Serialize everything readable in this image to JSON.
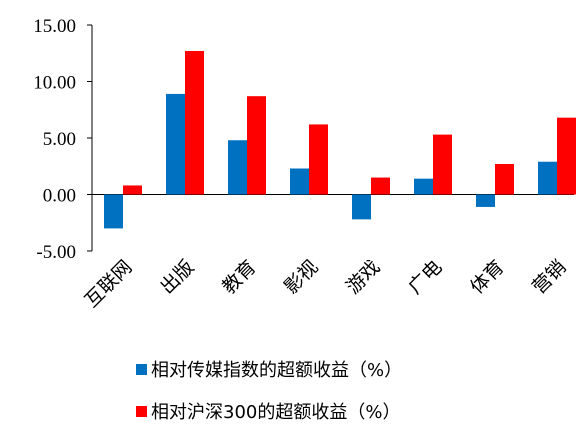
{
  "chart_data": {
    "type": "bar",
    "categories": [
      "互联网",
      "出版",
      "教育",
      "影视",
      "游戏",
      "广电",
      "体育",
      "营销"
    ],
    "series": [
      {
        "name": "相对传媒指数的超额收益（%）",
        "color": "#0070C0",
        "values": [
          -3.0,
          8.9,
          4.8,
          2.3,
          -2.2,
          1.4,
          -1.1,
          2.9
        ]
      },
      {
        "name": "相对沪深300的超额收益（%）",
        "color": "#FF0000",
        "values": [
          0.8,
          12.7,
          8.7,
          6.2,
          1.5,
          5.3,
          2.7,
          6.8
        ]
      }
    ],
    "ylim": [
      -5,
      15
    ],
    "yticks": [
      "-5.00",
      "0.00",
      "5.00",
      "10.00",
      "15.00"
    ],
    "ytick_values": [
      -5,
      0,
      5,
      10,
      15
    ],
    "legend_position": "bottom",
    "grid": false
  }
}
